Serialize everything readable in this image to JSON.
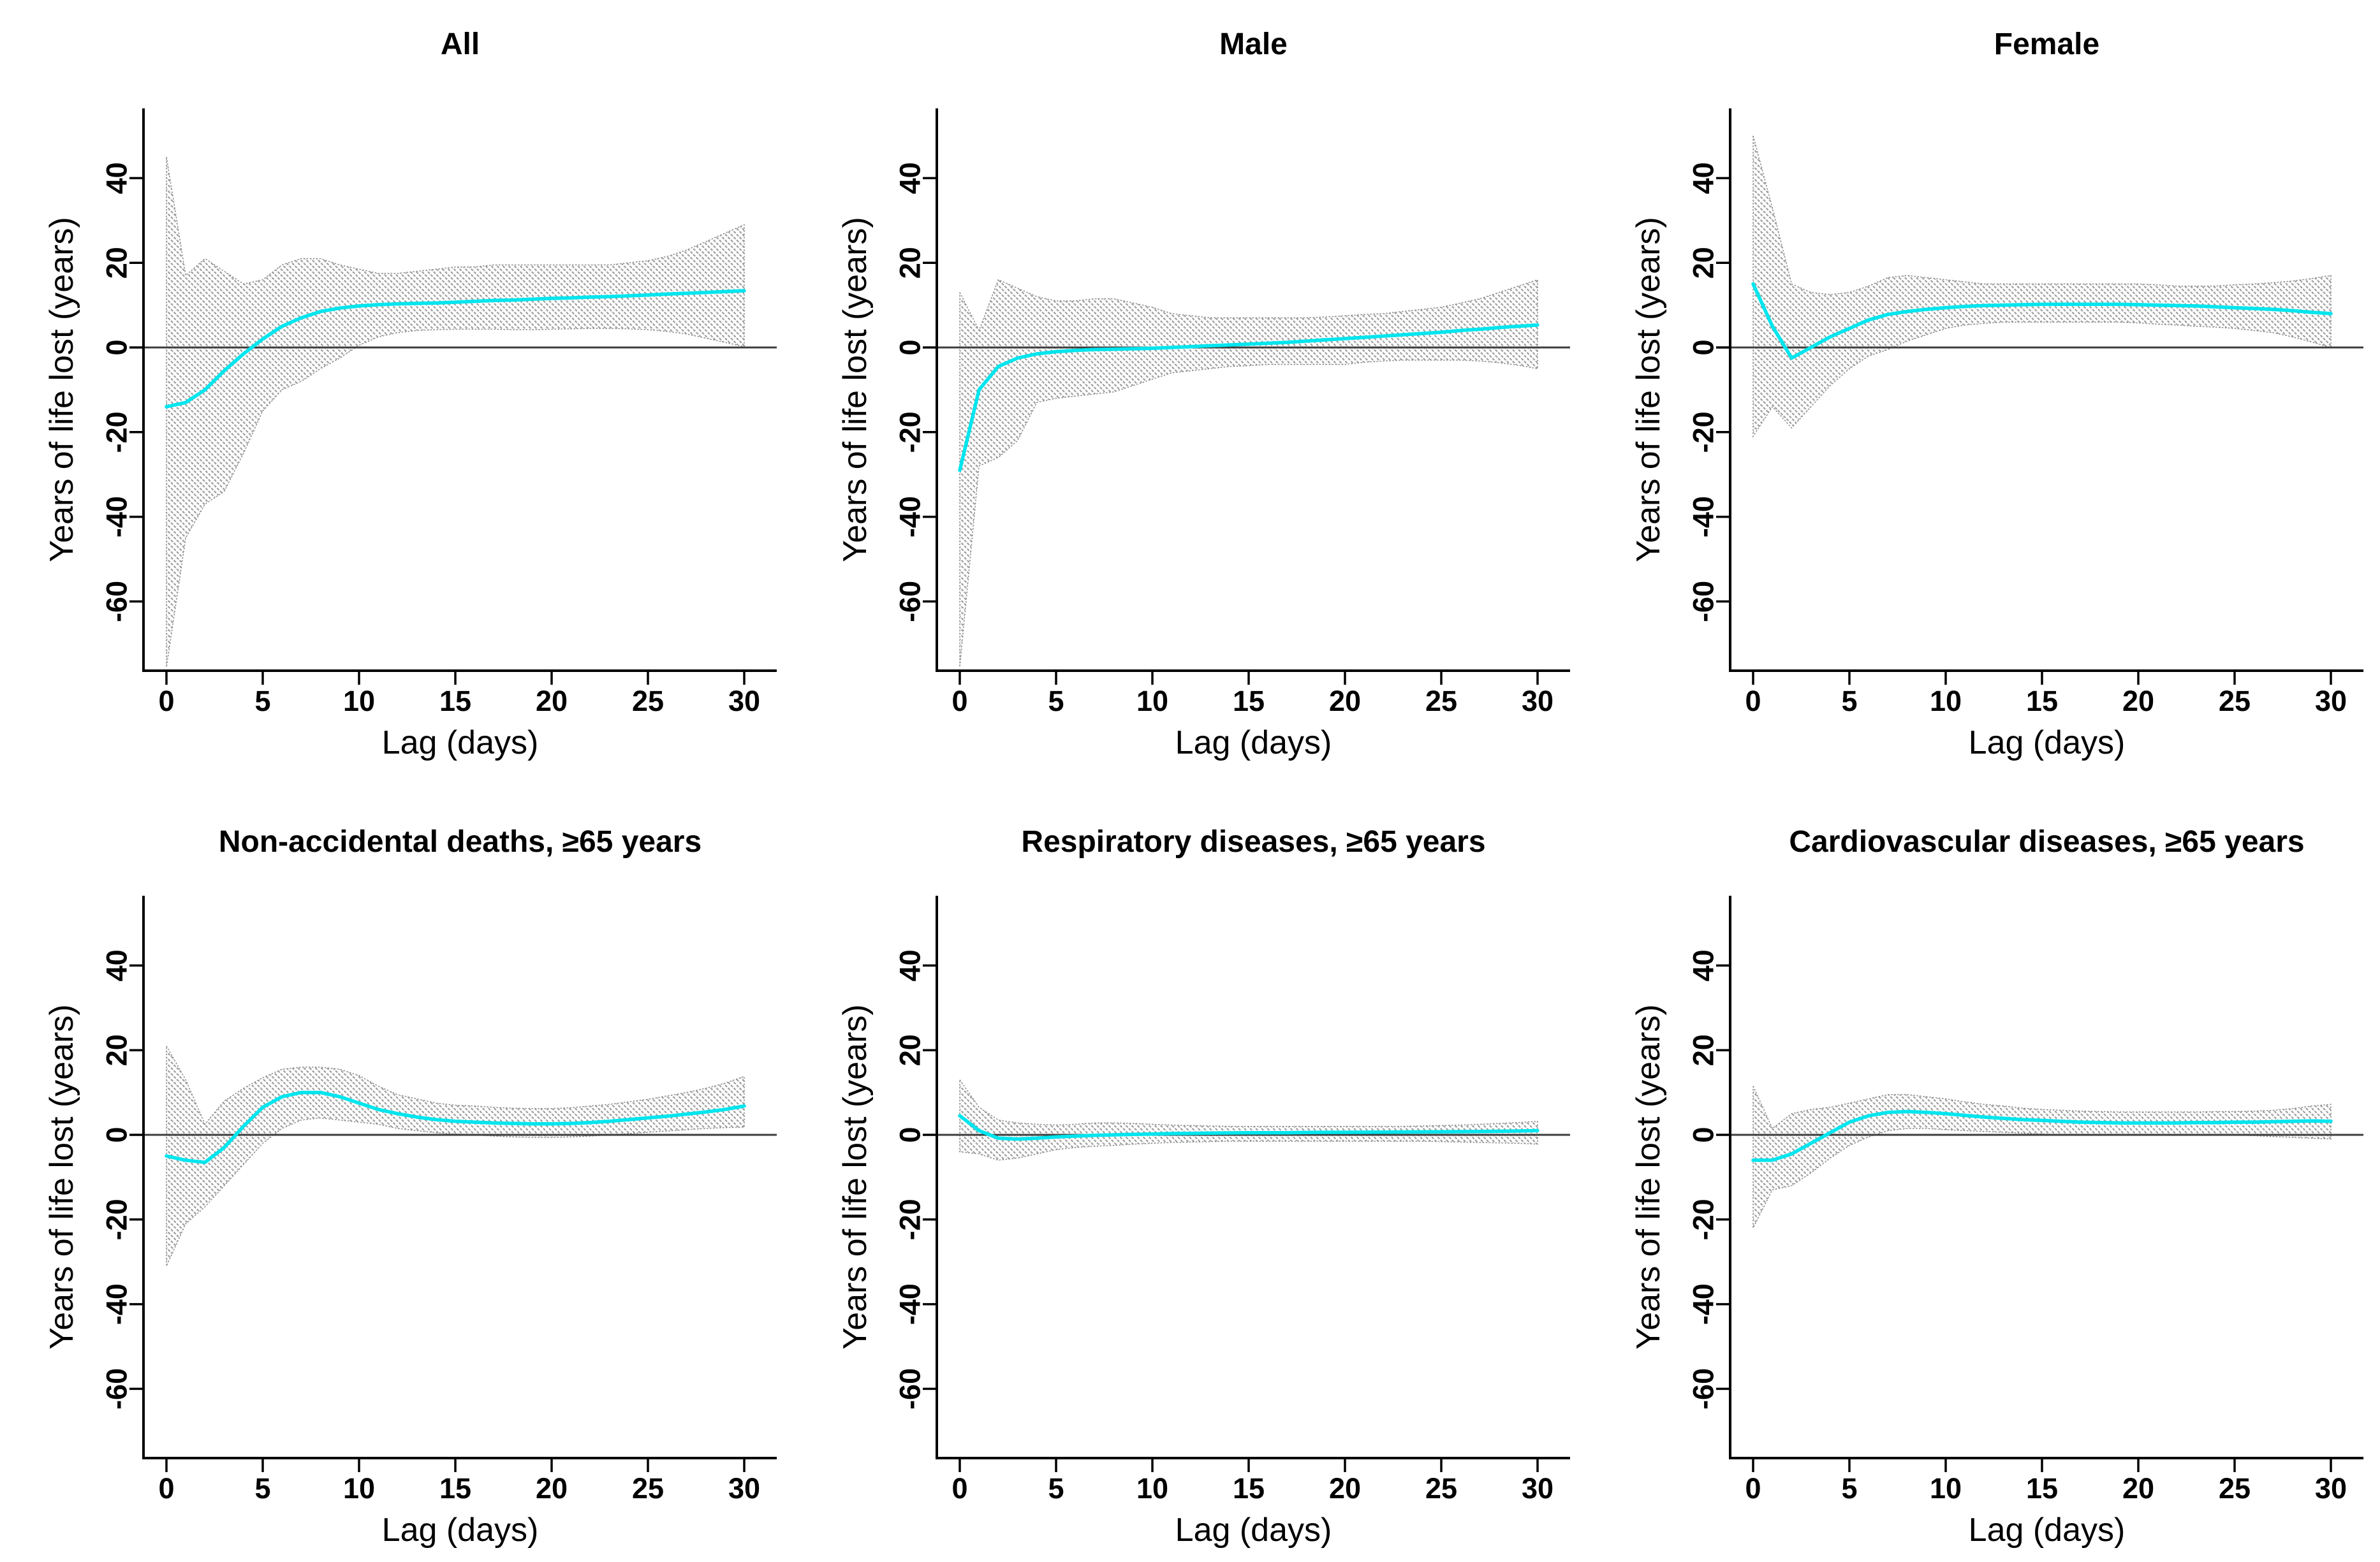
{
  "figure": {
    "xlabel": "Lag (days)",
    "ylabel": "Years of life lost (years)",
    "x_ticks": [
      0,
      5,
      10,
      15,
      20,
      25,
      30
    ],
    "y_ticks": [
      40,
      20,
      0,
      -20,
      -40,
      -60
    ],
    "xlim": [
      0,
      30
    ],
    "ylim": [
      -76,
      56
    ],
    "grid": "off",
    "legend": "none",
    "colors": {
      "estimate_line": "#00E5EE",
      "ci_hatch": "#9c9c9c",
      "ci_edge": "#8c8c8c",
      "zero_line": "#3d3d3d",
      "axis": "#000000",
      "background": "#ffffff"
    }
  },
  "chart_data": [
    {
      "type": "line",
      "title": "All",
      "xlabel": "Lag (days)",
      "ylabel": "Years of life lost (years)",
      "x": [
        0,
        1,
        2,
        3,
        4,
        5,
        6,
        7,
        8,
        9,
        10,
        11,
        12,
        13,
        14,
        15,
        16,
        17,
        18,
        19,
        20,
        21,
        22,
        23,
        24,
        25,
        26,
        27,
        28,
        29,
        30
      ],
      "estimate": [
        -14,
        -13,
        -10,
        -5.5,
        -1.5,
        2,
        5,
        7,
        8.5,
        9.3,
        9.8,
        10.1,
        10.3,
        10.4,
        10.5,
        10.7,
        10.9,
        11.1,
        11.2,
        11.4,
        11.6,
        11.7,
        11.9,
        12,
        12.2,
        12.4,
        12.6,
        12.8,
        13,
        13.2,
        13.4
      ],
      "ci_upper": [
        45,
        17,
        21,
        18,
        15,
        16,
        19.5,
        21,
        21,
        19.5,
        18.5,
        17.5,
        17.5,
        18,
        18.5,
        19,
        19,
        19.5,
        19.5,
        19.5,
        19.5,
        19.5,
        19.5,
        19.5,
        20,
        20.5,
        21.5,
        23,
        25,
        27,
        29
      ],
      "ci_lower": [
        -75.5,
        -45,
        -37,
        -34,
        -25,
        -15,
        -10,
        -8,
        -5,
        -2.5,
        0.5,
        2.5,
        3.5,
        4,
        4.2,
        4.3,
        4.3,
        4.3,
        4.2,
        4.2,
        4.3,
        4.4,
        4.5,
        4.5,
        4.4,
        4.2,
        3.8,
        3.2,
        2.2,
        1.2,
        0.2
      ]
    },
    {
      "type": "line",
      "title": "Male",
      "xlabel": "Lag (days)",
      "ylabel": "Years of life lost (years)",
      "x": [
        0,
        1,
        2,
        3,
        4,
        5,
        6,
        7,
        8,
        9,
        10,
        11,
        12,
        13,
        14,
        15,
        16,
        17,
        18,
        19,
        20,
        21,
        22,
        23,
        24,
        25,
        26,
        27,
        28,
        29,
        30
      ],
      "estimate": [
        -29,
        -10,
        -4.5,
        -2.5,
        -1.5,
        -1,
        -0.7,
        -0.5,
        -0.4,
        -0.3,
        -0.2,
        0,
        0.2,
        0.4,
        0.6,
        0.8,
        1,
        1.2,
        1.5,
        1.8,
        2.1,
        2.4,
        2.7,
        3,
        3.3,
        3.6,
        4,
        4.3,
        4.7,
        5,
        5.3
      ],
      "ci_upper": [
        13,
        4,
        16,
        14,
        12,
        11,
        11,
        11.5,
        11.5,
        10.5,
        9.5,
        8,
        7.5,
        7,
        7,
        7,
        7,
        7,
        7,
        7.2,
        7.5,
        7.8,
        8,
        8.5,
        9,
        9.5,
        10.5,
        11.5,
        13,
        14.5,
        16
      ],
      "ci_lower": [
        -75.5,
        -28,
        -26,
        -22,
        -13,
        -12,
        -11.5,
        -11,
        -10.5,
        -9,
        -7.5,
        -6,
        -5.5,
        -5,
        -4.5,
        -4.3,
        -4,
        -4,
        -4,
        -4,
        -4,
        -3.5,
        -3.2,
        -3,
        -3,
        -3,
        -3,
        -3.2,
        -3.6,
        -4.2,
        -5
      ]
    },
    {
      "type": "line",
      "title": "Female",
      "xlabel": "Lag (days)",
      "ylabel": "Years of life lost (years)",
      "x": [
        0,
        1,
        2,
        3,
        4,
        5,
        6,
        7,
        8,
        9,
        10,
        11,
        12,
        13,
        14,
        15,
        16,
        17,
        18,
        19,
        20,
        21,
        22,
        23,
        24,
        25,
        26,
        27,
        28,
        29,
        30
      ],
      "estimate": [
        15,
        5,
        -2.5,
        0,
        2.5,
        4.5,
        6.5,
        7.8,
        8.5,
        9,
        9.4,
        9.7,
        9.9,
        10,
        10.1,
        10.2,
        10.2,
        10.2,
        10.2,
        10.2,
        10.1,
        10,
        9.9,
        9.8,
        9.6,
        9.4,
        9.2,
        9,
        8.7,
        8.3,
        8
      ],
      "ci_upper": [
        50,
        33,
        15,
        13,
        12.5,
        13,
        14.5,
        16.5,
        17,
        16.5,
        16,
        15.5,
        15,
        15,
        15,
        15,
        15,
        15,
        15,
        15,
        15,
        14.8,
        14.5,
        14.5,
        14.5,
        14.8,
        15,
        15.3,
        15.7,
        16.3,
        17
      ],
      "ci_lower": [
        -21,
        -14,
        -19,
        -14,
        -9,
        -5,
        -2,
        -0.5,
        1.5,
        3,
        4.5,
        5.3,
        5.7,
        6,
        6,
        6,
        6,
        6,
        6,
        6,
        5.8,
        5.5,
        5.3,
        5,
        4.8,
        4.5,
        4,
        3.5,
        2.5,
        1.3,
        0
      ]
    },
    {
      "type": "line",
      "title": "Non-accidental deaths, ≥65 years",
      "xlabel": "Lag (days)",
      "ylabel": "Years of life lost (years)",
      "x": [
        0,
        1,
        2,
        3,
        4,
        5,
        6,
        7,
        8,
        9,
        10,
        11,
        12,
        13,
        14,
        15,
        16,
        17,
        18,
        19,
        20,
        21,
        22,
        23,
        24,
        25,
        26,
        27,
        28,
        29,
        30
      ],
      "estimate": [
        -5,
        -6,
        -6.5,
        -3,
        2,
        6.5,
        9,
        10,
        10,
        9,
        7.5,
        6,
        5,
        4.2,
        3.6,
        3.2,
        3,
        2.8,
        2.7,
        2.6,
        2.6,
        2.7,
        2.9,
        3.2,
        3.6,
        4,
        4.4,
        4.9,
        5.4,
        6,
        6.8
      ],
      "ci_upper": [
        21,
        13,
        2.5,
        8,
        11,
        13.5,
        15.5,
        16,
        16,
        15.5,
        14,
        11.5,
        9.5,
        8.5,
        7.5,
        7,
        6.8,
        6.5,
        6.3,
        6.2,
        6.2,
        6.4,
        6.8,
        7.2,
        7.8,
        8.4,
        9.2,
        10,
        11,
        12.2,
        13.8
      ],
      "ci_lower": [
        -31,
        -21,
        -17,
        -12,
        -7,
        -2,
        1.5,
        3.5,
        4,
        3.5,
        3,
        2.5,
        1.5,
        1,
        0.5,
        0.2,
        0,
        -0.3,
        -0.5,
        -0.6,
        -0.6,
        -0.5,
        -0.3,
        0,
        0.3,
        0.6,
        0.9,
        1.2,
        1.5,
        1.7,
        1.8
      ]
    },
    {
      "type": "line",
      "title": "Respiratory diseases, ≥65 years",
      "xlabel": "Lag (days)",
      "ylabel": "Years of life lost (years)",
      "x": [
        0,
        1,
        2,
        3,
        4,
        5,
        6,
        7,
        8,
        9,
        10,
        11,
        12,
        13,
        14,
        15,
        16,
        17,
        18,
        19,
        20,
        21,
        22,
        23,
        24,
        25,
        26,
        27,
        28,
        29,
        30
      ],
      "estimate": [
        4.5,
        1,
        -0.8,
        -1,
        -0.8,
        -0.5,
        -0.3,
        -0.1,
        0,
        0.1,
        0.2,
        0.3,
        0.35,
        0.4,
        0.45,
        0.5,
        0.5,
        0.5,
        0.55,
        0.6,
        0.6,
        0.62,
        0.65,
        0.68,
        0.7,
        0.72,
        0.75,
        0.8,
        0.85,
        0.9,
        1
      ],
      "ci_upper": [
        13,
        6.5,
        3.5,
        2.8,
        2.5,
        2.3,
        2.5,
        2.8,
        2.8,
        2.7,
        2.5,
        2.3,
        2.2,
        2.1,
        2,
        2,
        2,
        2,
        2,
        2,
        2,
        2,
        2,
        2,
        2.1,
        2.2,
        2.3,
        2.5,
        2.7,
        2.9,
        3.2
      ],
      "ci_lower": [
        -4,
        -4.5,
        -6,
        -5.5,
        -4.5,
        -3.5,
        -3,
        -2.7,
        -2.5,
        -2.2,
        -2,
        -1.8,
        -1.7,
        -1.6,
        -1.5,
        -1.5,
        -1.5,
        -1.5,
        -1.5,
        -1.5,
        -1.5,
        -1.5,
        -1.5,
        -1.5,
        -1.5,
        -1.6,
        -1.7,
        -1.8,
        -1.9,
        -2,
        -2.2
      ]
    },
    {
      "type": "line",
      "title": "Cardiovascular diseases, ≥65 years",
      "xlabel": "Lag (days)",
      "ylabel": "Years of life lost (years)",
      "x": [
        0,
        1,
        2,
        3,
        4,
        5,
        6,
        7,
        8,
        9,
        10,
        11,
        12,
        13,
        14,
        15,
        16,
        17,
        18,
        19,
        20,
        21,
        22,
        23,
        24,
        25,
        26,
        27,
        28,
        29,
        30
      ],
      "estimate": [
        -6,
        -6,
        -4.5,
        -2,
        0.5,
        3,
        4.5,
        5.3,
        5.5,
        5.3,
        5,
        4.6,
        4.2,
        3.9,
        3.6,
        3.4,
        3.2,
        3,
        2.9,
        2.8,
        2.8,
        2.8,
        2.8,
        2.9,
        2.9,
        3,
        3,
        3.1,
        3.2,
        3.3,
        3.2
      ],
      "ci_upper": [
        11.5,
        1.5,
        5,
        6,
        6.5,
        7.5,
        8.5,
        9.5,
        9.5,
        9,
        8.5,
        7.8,
        7.2,
        6.8,
        6.3,
        6,
        5.8,
        5.6,
        5.5,
        5.4,
        5.4,
        5.4,
        5.4,
        5.4,
        5.5,
        5.5,
        5.6,
        5.8,
        6.2,
        6.8,
        7.2
      ],
      "ci_lower": [
        -22,
        -13,
        -12,
        -9,
        -5.5,
        -2.5,
        -0.5,
        1,
        1.5,
        1.5,
        1.2,
        1,
        0.8,
        0.6,
        0.4,
        0.2,
        0,
        0,
        0,
        0,
        0,
        0,
        0,
        0,
        0,
        0,
        -0.2,
        -0.4,
        -0.6,
        -0.8,
        -1
      ]
    }
  ]
}
